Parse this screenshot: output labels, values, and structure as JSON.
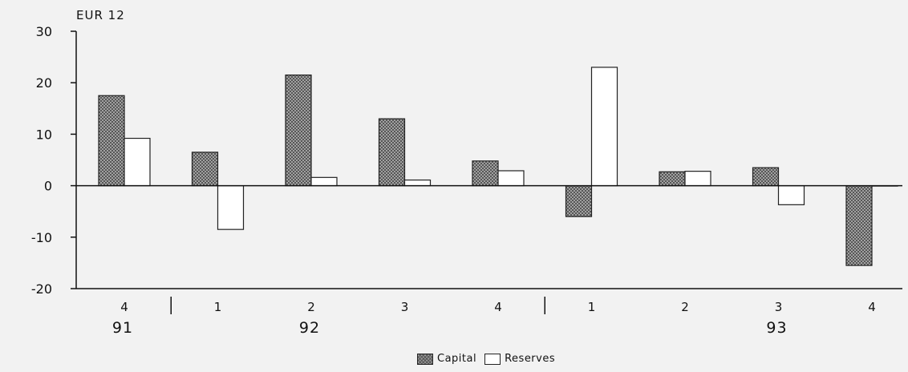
{
  "chart_data": {
    "type": "bar",
    "title": "EUR 12",
    "ylim": [
      -20,
      30
    ],
    "y_ticks": [
      "30",
      "20",
      "10",
      "0",
      "-10",
      "-20"
    ],
    "grid": false,
    "categories": [
      "4",
      "1",
      "2",
      "3",
      "4",
      "1",
      "2",
      "3",
      "4"
    ],
    "year_labels": [
      {
        "label": "91",
        "category_index": 0
      },
      {
        "label": "92",
        "category_index": 2
      },
      {
        "label": "93",
        "category_index": 7
      }
    ],
    "year_separators_after": [
      0,
      4
    ],
    "series": [
      {
        "name": "Capital",
        "values": [
          17.5,
          6.5,
          21.5,
          13,
          4.8,
          -6,
          2.7,
          3.5,
          -15.5
        ],
        "pattern": "crosshatch",
        "color": "#9a9a9a"
      },
      {
        "name": "Reserves",
        "values": [
          9.2,
          -8.5,
          1.6,
          1.1,
          2.9,
          23,
          2.8,
          -3.7,
          0
        ],
        "pattern": "none",
        "color": "#ffffff"
      }
    ],
    "legend_position": "bottom"
  }
}
